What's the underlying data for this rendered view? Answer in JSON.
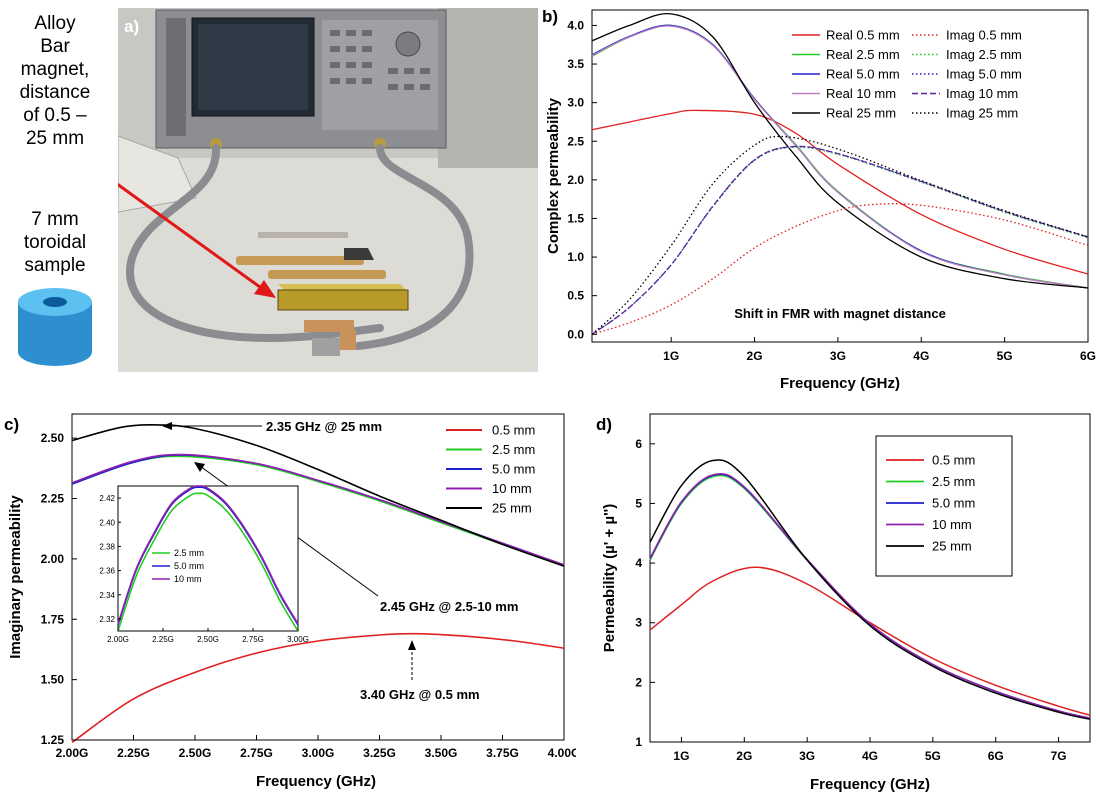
{
  "side": {
    "magnet_label": [
      "Alloy",
      "Bar",
      "magnet,",
      "distance",
      "of 0.5 –",
      "25 mm"
    ],
    "sample_label": [
      "7 mm",
      "toroidal",
      "sample"
    ]
  },
  "photo": {
    "label": "a)"
  },
  "panels": {
    "b": "b)",
    "c": "c)",
    "d": "d)"
  },
  "chart_data": [
    {
      "id": "b",
      "type": "line",
      "xlabel": "Frequency (GHz)",
      "ylabel": "Complex permeability",
      "xlim": [
        0.05,
        6
      ],
      "ylim": [
        -0.1,
        4.2
      ],
      "xticks": [
        1,
        2,
        3,
        4,
        5,
        6
      ],
      "xtick_labels": [
        "1G",
        "2G",
        "3G",
        "4G",
        "5G",
        "6G"
      ],
      "yticks": [
        0.0,
        0.5,
        1.0,
        1.5,
        2.0,
        2.5,
        3.0,
        3.5,
        4.0
      ],
      "ytick_labels": [
        "0.0",
        "0.5",
        "1.0",
        "1.5",
        "2.0",
        "2.5",
        "3.0",
        "3.5",
        "4.0"
      ],
      "annotation": "Shift in FMR with magnet distance",
      "legend_position": "top-right",
      "series": [
        {
          "name": "Real 0.5 mm",
          "color": "#e02020",
          "dash": "solid",
          "x": [
            0.05,
            0.5,
            1,
            1.3,
            2,
            2.5,
            3,
            4,
            5,
            6
          ],
          "y": [
            2.65,
            2.75,
            2.86,
            2.9,
            2.85,
            2.6,
            2.2,
            1.55,
            1.1,
            0.78
          ]
        },
        {
          "name": "Real 2.5 mm",
          "color": "#22cc22",
          "dash": "solid",
          "x": [
            0.05,
            0.5,
            1,
            1.5,
            2,
            2.5,
            3,
            4,
            5,
            6
          ],
          "y": [
            3.6,
            3.85,
            4.0,
            3.75,
            3.05,
            2.45,
            1.85,
            1.08,
            0.78,
            0.6
          ]
        },
        {
          "name": "Real 5.0 mm",
          "color": "#2020cc",
          "dash": "solid",
          "x": [
            0.05,
            0.5,
            1,
            1.5,
            2,
            2.5,
            3,
            4,
            5,
            6
          ],
          "y": [
            3.62,
            3.86,
            4.0,
            3.75,
            3.05,
            2.44,
            1.84,
            1.08,
            0.77,
            0.6
          ]
        },
        {
          "name": "Real 10 mm",
          "color": "#c080c0",
          "dash": "solid",
          "x": [
            0.05,
            0.5,
            1,
            1.5,
            2,
            2.5,
            3,
            4,
            5,
            6
          ],
          "y": [
            3.61,
            3.85,
            3.99,
            3.74,
            3.04,
            2.44,
            1.84,
            1.07,
            0.77,
            0.6
          ]
        },
        {
          "name": "Real 25 mm",
          "color": "#000000",
          "dash": "solid",
          "x": [
            0.05,
            0.5,
            1,
            1.5,
            2,
            2.5,
            3,
            4,
            5,
            6
          ],
          "y": [
            3.8,
            4.0,
            4.15,
            3.85,
            3.0,
            2.3,
            1.7,
            1.0,
            0.72,
            0.6
          ]
        },
        {
          "name": "Imag 0.5 mm",
          "color": "#e02020",
          "dash": "dot",
          "x": [
            0.05,
            0.5,
            1,
            1.5,
            2,
            2.5,
            3,
            3.4,
            4,
            5,
            6
          ],
          "y": [
            0.0,
            0.15,
            0.38,
            0.72,
            1.12,
            1.4,
            1.6,
            1.68,
            1.67,
            1.48,
            1.15
          ]
        },
        {
          "name": "Imag 2.5 mm",
          "color": "#22cc22",
          "dash": "dot",
          "x": [
            0.05,
            0.5,
            1,
            1.5,
            2,
            2.45,
            3,
            4,
            5,
            6
          ],
          "y": [
            0.0,
            0.35,
            0.9,
            1.65,
            2.25,
            2.42,
            2.33,
            1.97,
            1.58,
            1.25
          ]
        },
        {
          "name": "Imag 5.0 mm",
          "color": "#2020cc",
          "dash": "dot",
          "x": [
            0.05,
            0.5,
            1,
            1.5,
            2,
            2.45,
            3,
            4,
            5,
            6
          ],
          "y": [
            0.0,
            0.35,
            0.9,
            1.66,
            2.26,
            2.43,
            2.34,
            1.98,
            1.59,
            1.26
          ]
        },
        {
          "name": "Imag 10 mm",
          "color": "#6020a0",
          "dash": "dash",
          "x": [
            0.05,
            0.5,
            1,
            1.5,
            2,
            2.45,
            3,
            4,
            5,
            6
          ],
          "y": [
            0.0,
            0.35,
            0.9,
            1.66,
            2.26,
            2.43,
            2.34,
            1.98,
            1.59,
            1.26
          ]
        },
        {
          "name": "Imag 25 mm",
          "color": "#000000",
          "dash": "dot",
          "x": [
            0.05,
            0.5,
            1,
            1.5,
            2,
            2.35,
            3,
            4,
            5,
            6
          ],
          "y": [
            0.0,
            0.45,
            1.15,
            1.95,
            2.45,
            2.56,
            2.4,
            1.99,
            1.6,
            1.26
          ]
        }
      ]
    },
    {
      "id": "c",
      "type": "line",
      "xlabel": "Frequency (GHz)",
      "ylabel": "Imaginary permeability",
      "xlim": [
        2.0,
        4.0
      ],
      "ylim": [
        1.25,
        2.6
      ],
      "xticks": [
        2.0,
        2.25,
        2.5,
        2.75,
        3.0,
        3.25,
        3.5,
        3.75,
        4.0
      ],
      "xtick_labels": [
        "2.00G",
        "2.25G",
        "2.50G",
        "2.75G",
        "3.00G",
        "3.25G",
        "3.50G",
        "3.75G",
        "4.00G"
      ],
      "yticks": [
        1.25,
        1.5,
        1.75,
        2.0,
        2.25,
        2.5
      ],
      "ytick_labels": [
        "1.25",
        "1.50",
        "1.75",
        "2.00",
        "2.25",
        "2.50"
      ],
      "legend_position": "top-right",
      "annotations": [
        "2.35 GHz @ 25 mm",
        "2.45 GHz @ 2.5-10 mm",
        "3.40 GHz @ 0.5 mm"
      ],
      "series": [
        {
          "name": "0.5 mm",
          "color": "#e02020",
          "x": [
            2.0,
            2.25,
            2.5,
            2.75,
            3.0,
            3.25,
            3.4,
            3.6,
            3.8,
            4.0
          ],
          "y": [
            1.24,
            1.42,
            1.53,
            1.61,
            1.66,
            1.685,
            1.69,
            1.68,
            1.66,
            1.63
          ]
        },
        {
          "name": "2.5 mm",
          "color": "#22cc22",
          "x": [
            2.0,
            2.25,
            2.45,
            2.75,
            3.0,
            3.25,
            3.5,
            3.75,
            4.0
          ],
          "y": [
            2.31,
            2.4,
            2.425,
            2.39,
            2.32,
            2.24,
            2.15,
            2.06,
            1.97
          ]
        },
        {
          "name": "5.0 mm",
          "color": "#2020cc",
          "x": [
            2.0,
            2.25,
            2.45,
            2.75,
            3.0,
            3.25,
            3.5,
            3.75,
            4.0
          ],
          "y": [
            2.31,
            2.4,
            2.43,
            2.395,
            2.325,
            2.245,
            2.155,
            2.065,
            1.975
          ]
        },
        {
          "name": "10 mm",
          "color": "#9020b0",
          "x": [
            2.0,
            2.25,
            2.45,
            2.75,
            3.0,
            3.25,
            3.5,
            3.75,
            4.0
          ],
          "y": [
            2.315,
            2.405,
            2.432,
            2.395,
            2.325,
            2.245,
            2.155,
            2.065,
            1.975
          ]
        },
        {
          "name": "25 mm",
          "color": "#000000",
          "x": [
            2.0,
            2.2,
            2.35,
            2.5,
            2.75,
            3.0,
            3.25,
            3.5,
            3.75,
            4.0
          ],
          "y": [
            2.49,
            2.545,
            2.555,
            2.54,
            2.47,
            2.37,
            2.26,
            2.16,
            2.06,
            1.97
          ]
        }
      ],
      "inset": {
        "xlim": [
          2.0,
          3.0
        ],
        "ylim": [
          2.31,
          2.43
        ],
        "xticks": [
          2.0,
          2.25,
          2.5,
          2.75,
          3.0
        ],
        "xtick_labels": [
          "2.00G",
          "2.25G",
          "2.50G",
          "2.75G",
          "3.00G"
        ],
        "yticks": [
          2.32,
          2.34,
          2.36,
          2.38,
          2.4,
          2.42
        ],
        "ytick_labels": [
          "2.32",
          "2.34",
          "2.36",
          "2.38",
          "2.40",
          "2.42"
        ],
        "series": [
          {
            "name": "2.5 mm",
            "color": "#22cc22",
            "x": [
              2.0,
              2.1,
              2.2,
              2.3,
              2.4,
              2.45,
              2.5,
              2.6,
              2.7,
              2.8,
              2.9,
              3.0
            ],
            "y": [
              2.31,
              2.355,
              2.385,
              2.41,
              2.422,
              2.424,
              2.422,
              2.41,
              2.39,
              2.365,
              2.335,
              2.31
            ]
          },
          {
            "name": "5.0 mm",
            "color": "#2020cc",
            "x": [
              2.0,
              2.1,
              2.2,
              2.3,
              2.4,
              2.45,
              2.5,
              2.6,
              2.7,
              2.8,
              2.9,
              3.0
            ],
            "y": [
              2.315,
              2.36,
              2.39,
              2.415,
              2.427,
              2.429,
              2.427,
              2.415,
              2.395,
              2.37,
              2.34,
              2.315
            ]
          },
          {
            "name": "10 mm",
            "color": "#9020b0",
            "x": [
              2.0,
              2.1,
              2.2,
              2.3,
              2.4,
              2.45,
              2.5,
              2.6,
              2.7,
              2.8,
              2.9,
              3.0
            ],
            "y": [
              2.316,
              2.361,
              2.391,
              2.416,
              2.428,
              2.43,
              2.428,
              2.416,
              2.396,
              2.371,
              2.341,
              2.316
            ]
          }
        ]
      }
    },
    {
      "id": "d",
      "type": "line",
      "xlabel": "Frequency (GHz)",
      "ylabel": "Permeability (µ' + µ'')",
      "xlim": [
        0.5,
        7.5
      ],
      "ylim": [
        1.0,
        6.5
      ],
      "xticks": [
        1,
        2,
        3,
        4,
        5,
        6,
        7
      ],
      "xtick_labels": [
        "1G",
        "2G",
        "3G",
        "4G",
        "5G",
        "6G",
        "7G"
      ],
      "yticks": [
        1,
        2,
        3,
        4,
        5,
        6
      ],
      "ytick_labels": [
        "1",
        "2",
        "3",
        "4",
        "5",
        "6"
      ],
      "legend_position": "top-right",
      "series": [
        {
          "name": "0.5 mm",
          "color": "#e02020",
          "x": [
            0.5,
            1,
            1.5,
            2.2,
            3,
            4,
            5,
            6,
            7,
            7.5
          ],
          "y": [
            2.88,
            3.3,
            3.7,
            3.93,
            3.65,
            3.0,
            2.4,
            1.95,
            1.6,
            1.45
          ]
        },
        {
          "name": "2.5 mm",
          "color": "#22cc22",
          "x": [
            0.5,
            1,
            1.5,
            2,
            3,
            4,
            5,
            6,
            7,
            7.5
          ],
          "y": [
            4.05,
            5.0,
            5.45,
            5.25,
            4.05,
            2.98,
            2.3,
            1.85,
            1.52,
            1.4
          ]
        },
        {
          "name": "5.0 mm",
          "color": "#2020cc",
          "x": [
            0.5,
            1,
            1.5,
            2,
            3,
            4,
            5,
            6,
            7,
            7.5
          ],
          "y": [
            4.07,
            5.02,
            5.47,
            5.27,
            4.06,
            2.98,
            2.3,
            1.85,
            1.52,
            1.4
          ]
        },
        {
          "name": "10 mm",
          "color": "#9020b0",
          "x": [
            0.5,
            1,
            1.5,
            2,
            3,
            4,
            5,
            6,
            7,
            7.5
          ],
          "y": [
            4.08,
            5.03,
            5.48,
            5.28,
            4.06,
            2.98,
            2.3,
            1.85,
            1.52,
            1.4
          ]
        },
        {
          "name": "25 mm",
          "color": "#000000",
          "x": [
            0.5,
            1,
            1.5,
            2,
            3,
            4,
            5,
            6,
            7,
            7.5
          ],
          "y": [
            4.35,
            5.3,
            5.72,
            5.45,
            4.05,
            2.95,
            2.27,
            1.82,
            1.5,
            1.38
          ]
        }
      ]
    }
  ]
}
